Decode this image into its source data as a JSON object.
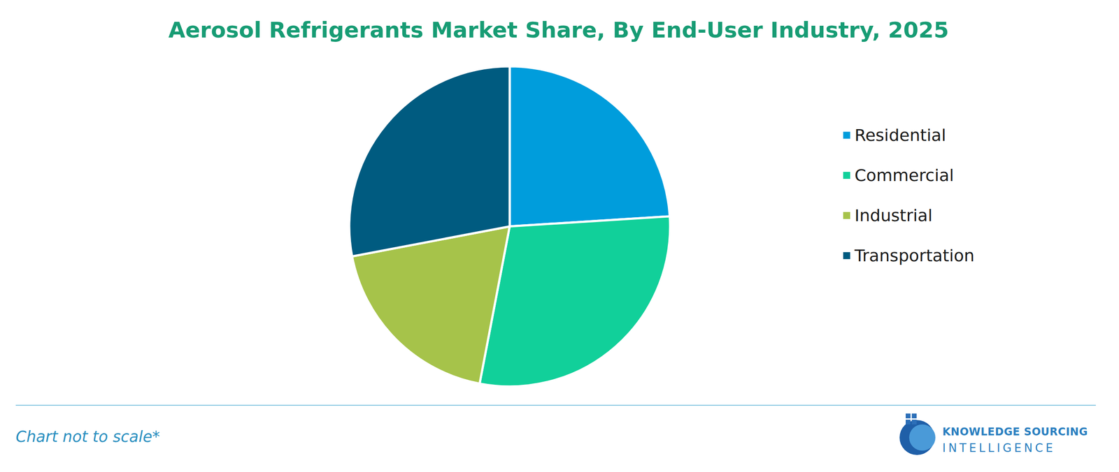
{
  "chart_data": {
    "type": "pie",
    "title": "Aerosol Refrigerants Market Share, By End-User Industry, 2025",
    "categories": [
      "Residential",
      "Commercial",
      "Industrial",
      "Transportation"
    ],
    "values": [
      24,
      29,
      19,
      28
    ],
    "colors": [
      "#009ddc",
      "#11d09a",
      "#a6c34a",
      "#005b80"
    ],
    "legend": "right",
    "note": "Chart not to scale*",
    "logo_text": [
      "KNOWLEDGE SOURCING",
      "INTELLIGENCE"
    ]
  }
}
